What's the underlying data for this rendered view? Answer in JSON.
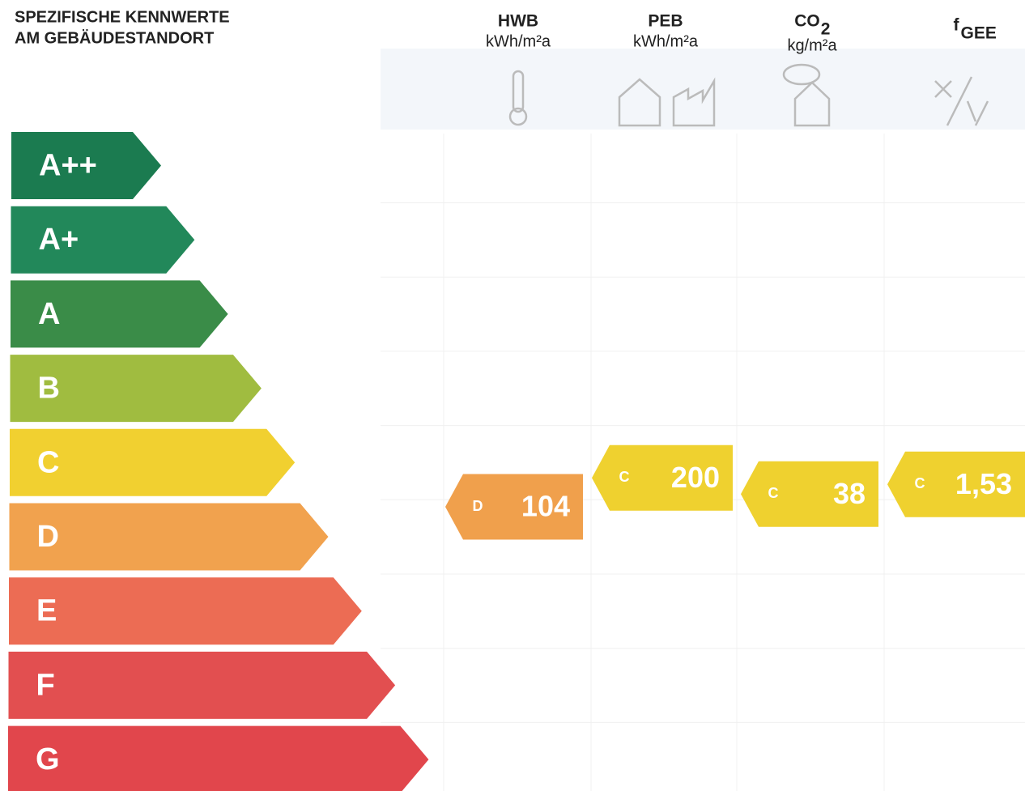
{
  "header": {
    "title": [
      "SPEZIFISCHE KENNWERTE",
      "AM GEBÄUDESTANDORT"
    ]
  },
  "classes": [
    {
      "label": "A++",
      "color": "#1b7b50"
    },
    {
      "label": "A+",
      "color": "#22885a"
    },
    {
      "label": "A",
      "color": "#3a8c48"
    },
    {
      "label": "B",
      "color": "#a0bc40"
    },
    {
      "label": "C",
      "color": "#f1d030"
    },
    {
      "label": "D",
      "color": "#f1a24e"
    },
    {
      "label": "E",
      "color": "#ec6c54"
    },
    {
      "label": "F",
      "color": "#e24f50"
    },
    {
      "label": "G",
      "color": "#e1464c"
    }
  ],
  "columns": [
    {
      "name": "HWB",
      "unit": "kWh/m²a",
      "rating": {
        "class": "D",
        "value": "104",
        "color": "#f0a04c"
      }
    },
    {
      "name": "PEB",
      "unit": "kWh/m²a",
      "rating": {
        "class": "C",
        "value": "200",
        "color": "#efd12f"
      }
    },
    {
      "name": "CO",
      "sub": "2",
      "unit": "kg/m²a",
      "rating": {
        "class": "C",
        "value": "38",
        "color": "#efd12f"
      }
    },
    {
      "name": "f",
      "sub": "GEE",
      "rating": {
        "class": "C",
        "value": "1,53",
        "color": "#efd12f"
      }
    }
  ]
}
